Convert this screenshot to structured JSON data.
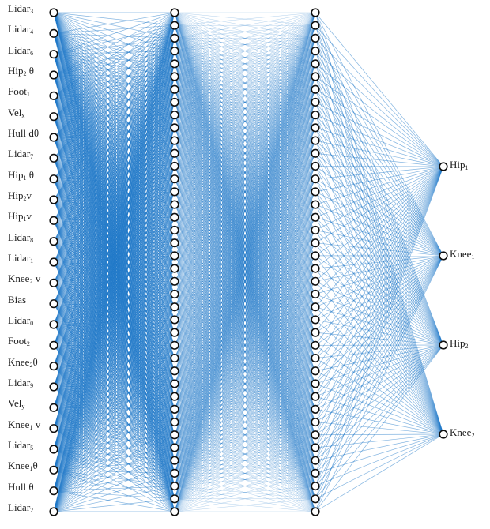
{
  "colors": {
    "edge": "#1f78c8",
    "node_stroke": "#111111",
    "node_fill": "#ffffff"
  },
  "network": {
    "hidden_layer_sizes": [
      40,
      40
    ],
    "input_labels": [
      {
        "base": "Lidar",
        "sub": "3",
        "suffix": ""
      },
      {
        "base": "Lidar",
        "sub": "4",
        "suffix": ""
      },
      {
        "base": "Lidar",
        "sub": "6",
        "suffix": ""
      },
      {
        "base": "Hip",
        "sub": "2",
        "suffix": " θ"
      },
      {
        "base": "Foot",
        "sub": "1",
        "suffix": ""
      },
      {
        "base": "Vel",
        "sub": "x",
        "suffix": ""
      },
      {
        "base": "Hull dθ",
        "sub": "",
        "suffix": ""
      },
      {
        "base": "Lidar",
        "sub": "7",
        "suffix": ""
      },
      {
        "base": "Hip",
        "sub": "1",
        "suffix": " θ"
      },
      {
        "base": "Hip",
        "sub": "2",
        "suffix": "v"
      },
      {
        "base": "Hip",
        "sub": "1",
        "suffix": "v"
      },
      {
        "base": "Lidar",
        "sub": "8",
        "suffix": ""
      },
      {
        "base": "Lidar",
        "sub": "1",
        "suffix": ""
      },
      {
        "base": "Knee",
        "sub": "2",
        "suffix": " v"
      },
      {
        "base": "Bias",
        "sub": "",
        "suffix": ""
      },
      {
        "base": "Lidar",
        "sub": "0",
        "suffix": ""
      },
      {
        "base": "Foot",
        "sub": "2",
        "suffix": ""
      },
      {
        "base": "Knee",
        "sub": "2",
        "suffix": "θ"
      },
      {
        "base": "Lidar",
        "sub": "9",
        "suffix": ""
      },
      {
        "base": "Vel",
        "sub": "y",
        "suffix": ""
      },
      {
        "base": "Knee",
        "sub": "1",
        "suffix": " v"
      },
      {
        "base": "Lidar",
        "sub": "5",
        "suffix": ""
      },
      {
        "base": "Knee",
        "sub": "1",
        "suffix": "θ"
      },
      {
        "base": "Hull θ",
        "sub": "",
        "suffix": ""
      },
      {
        "base": "Lidar",
        "sub": "2",
        "suffix": ""
      }
    ],
    "output_labels": [
      {
        "base": "Hip",
        "sub": "1",
        "suffix": ""
      },
      {
        "base": "Knee",
        "sub": "1",
        "suffix": ""
      },
      {
        "base": "Hip",
        "sub": "2",
        "suffix": ""
      },
      {
        "base": "Knee",
        "sub": "2",
        "suffix": ""
      }
    ]
  }
}
